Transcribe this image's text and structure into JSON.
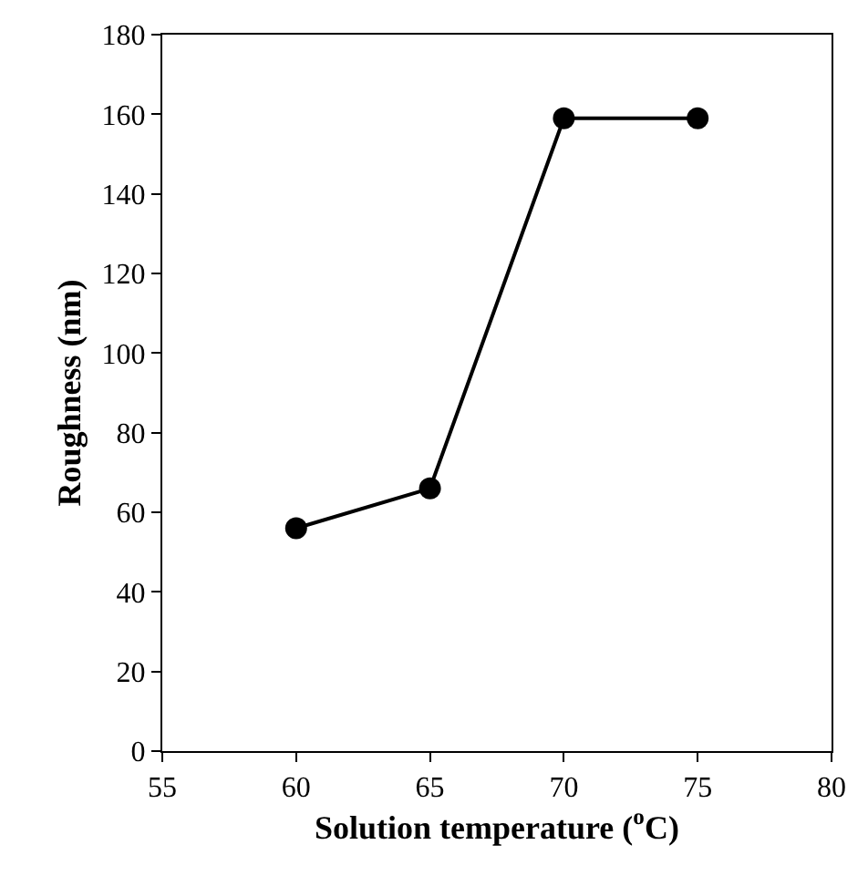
{
  "chart_data": {
    "type": "line",
    "xlabel": "Solution temperature ($^{o}$C)",
    "ylabel": "Roughness (nm)",
    "x": [
      60,
      65,
      70,
      75
    ],
    "series": [
      {
        "color": "#000000",
        "values": [
          56,
          66,
          159,
          159
        ]
      }
    ],
    "xlim": [
      55,
      80
    ],
    "xticks": [
      55,
      60,
      65,
      70,
      75,
      80
    ],
    "ylim": [
      0,
      180
    ],
    "yticks": [
      0,
      20,
      40,
      60,
      80,
      100,
      120,
      140,
      160,
      180
    ],
    "marker": "circle",
    "line_style": "solid"
  }
}
